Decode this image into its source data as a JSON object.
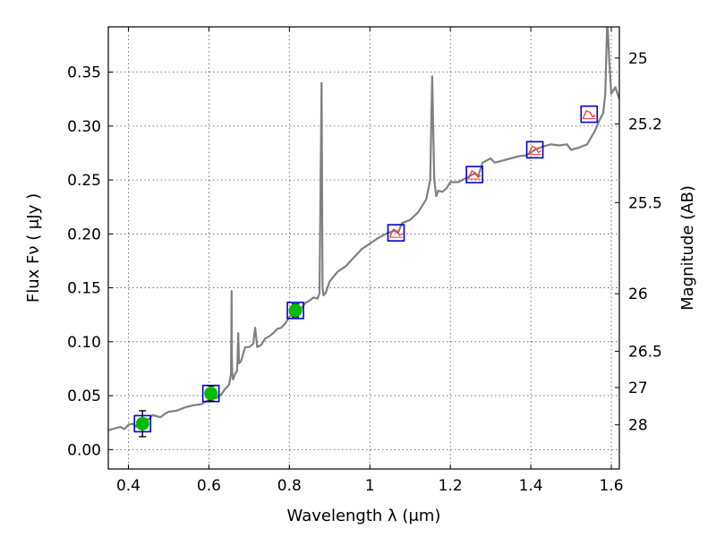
{
  "chart_data": {
    "type": "line",
    "xlabel": "Wavelength  λ (μm)",
    "ylabel": "Flux  Fν  ( μJy )",
    "y2label": "Magnitude (AB)",
    "xlim": [
      0.35,
      1.62
    ],
    "ylim": [
      -0.018,
      0.392
    ],
    "grid": true,
    "x_ticks": [
      0.4,
      0.6,
      0.8,
      1.0,
      1.2,
      1.4,
      1.6
    ],
    "x_tick_labels": [
      "0.4",
      "0.6",
      "0.8",
      "1",
      "1.2",
      "1.4",
      "1.6"
    ],
    "y_ticks": [
      0.0,
      0.05,
      0.1,
      0.15,
      0.2,
      0.25,
      0.3,
      0.35
    ],
    "y_tick_labels": [
      "0.00",
      "0.05",
      "0.10",
      "0.15",
      "0.20",
      "0.25",
      "0.30",
      "0.35"
    ],
    "mag_ticks": [
      {
        "label": "25",
        "mag": 25.0
      },
      {
        "label": "25.2",
        "mag": 25.2
      },
      {
        "label": "25.5",
        "mag": 25.5
      },
      {
        "label": "26",
        "mag": 26.0
      },
      {
        "label": "26.5",
        "mag": 26.5
      },
      {
        "label": "27",
        "mag": 27.0
      },
      {
        "label": "28",
        "mag": 28.0
      }
    ],
    "colors": {
      "spectrum": "#808080",
      "observed_point": "#00bb00",
      "model_box": "#0000cc",
      "model_curve": "#ff3333",
      "error_bar": "#000000"
    },
    "series": [
      {
        "kind": "spectrum",
        "x": [
          0.35,
          0.37,
          0.38,
          0.39,
          0.4,
          0.41,
          0.42,
          0.43,
          0.44,
          0.45,
          0.46,
          0.47,
          0.48,
          0.49,
          0.5,
          0.52,
          0.54,
          0.56,
          0.58,
          0.6,
          0.62,
          0.63,
          0.64,
          0.645,
          0.65,
          0.655,
          0.656,
          0.6565,
          0.657,
          0.658,
          0.66,
          0.665,
          0.67,
          0.672,
          0.673,
          0.675,
          0.68,
          0.69,
          0.7,
          0.71,
          0.715,
          0.72,
          0.73,
          0.74,
          0.75,
          0.76,
          0.77,
          0.78,
          0.79,
          0.8,
          0.81,
          0.82,
          0.83,
          0.84,
          0.85,
          0.86,
          0.87,
          0.875,
          0.88,
          0.8825,
          0.885,
          0.89,
          0.9,
          0.92,
          0.94,
          0.96,
          0.98,
          1.0,
          1.02,
          1.04,
          1.06,
          1.07,
          1.08,
          1.1,
          1.12,
          1.14,
          1.15,
          1.155,
          1.16,
          1.165,
          1.17,
          1.18,
          1.19,
          1.2,
          1.22,
          1.24,
          1.26,
          1.27,
          1.28,
          1.3,
          1.31,
          1.33,
          1.35,
          1.37,
          1.39,
          1.41,
          1.43,
          1.45,
          1.47,
          1.49,
          1.5,
          1.52,
          1.54,
          1.56,
          1.57,
          1.58,
          1.585,
          1.59,
          1.595,
          1.6,
          1.605,
          1.61,
          1.62
        ],
        "y": [
          0.018,
          0.02,
          0.021,
          0.019,
          0.023,
          0.024,
          0.021,
          0.027,
          0.029,
          0.028,
          0.032,
          0.031,
          0.03,
          0.033,
          0.035,
          0.036,
          0.039,
          0.041,
          0.042,
          0.046,
          0.048,
          0.051,
          0.056,
          0.058,
          0.06,
          0.07,
          0.12,
          0.147,
          0.09,
          0.072,
          0.065,
          0.07,
          0.073,
          0.095,
          0.108,
          0.08,
          0.082,
          0.095,
          0.095,
          0.098,
          0.113,
          0.095,
          0.097,
          0.103,
          0.105,
          0.108,
          0.112,
          0.113,
          0.117,
          0.123,
          0.126,
          0.129,
          0.131,
          0.136,
          0.138,
          0.141,
          0.14,
          0.145,
          0.34,
          0.15,
          0.143,
          0.145,
          0.156,
          0.165,
          0.17,
          0.178,
          0.186,
          0.191,
          0.196,
          0.2,
          0.203,
          0.201,
          0.21,
          0.213,
          0.22,
          0.232,
          0.25,
          0.346,
          0.25,
          0.235,
          0.24,
          0.239,
          0.242,
          0.248,
          0.248,
          0.252,
          0.256,
          0.254,
          0.266,
          0.27,
          0.266,
          0.268,
          0.27,
          0.272,
          0.273,
          0.278,
          0.281,
          0.283,
          0.282,
          0.283,
          0.278,
          0.28,
          0.283,
          0.296,
          0.305,
          0.312,
          0.33,
          0.4,
          0.36,
          0.33,
          0.333,
          0.336,
          0.325
        ]
      },
      {
        "kind": "observed",
        "name": "",
        "x": [
          0.435,
          0.605,
          0.815
        ],
        "y": [
          0.024,
          0.052,
          0.129
        ],
        "yerr": [
          0.012,
          0.007,
          0.006
        ]
      },
      {
        "kind": "model_boxes",
        "x": [
          0.435,
          0.605,
          0.815,
          1.065,
          1.26,
          1.41,
          1.545
        ],
        "y": [
          0.024,
          0.052,
          0.129,
          0.201,
          0.255,
          0.278,
          0.311
        ]
      },
      {
        "kind": "model_curves",
        "x": [
          1.065,
          1.26,
          1.41,
          1.545
        ],
        "y": [
          0.201,
          0.255,
          0.278,
          0.311
        ]
      }
    ]
  }
}
